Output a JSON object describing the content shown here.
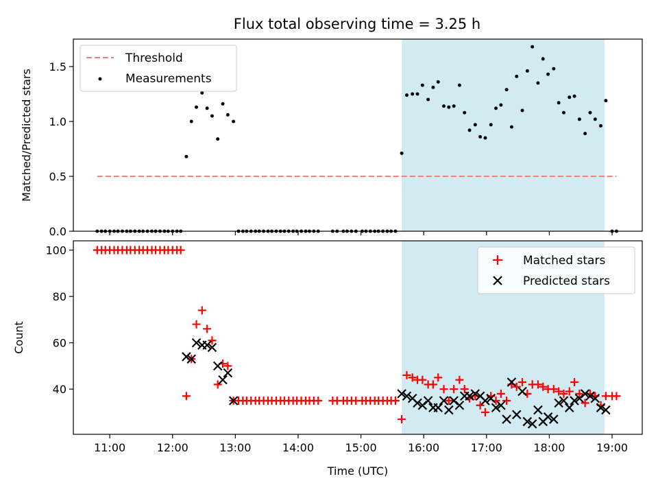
{
  "title": "Flux total observing time = 3.25 h",
  "colors": {
    "threshold": "#f08080",
    "measurement": "#000000",
    "matched": "#ff0000",
    "predicted": "#000000",
    "span": "#add8e6"
  },
  "chart_data": [
    {
      "type": "scatter",
      "title": "Flux total observing time = 3.25 h",
      "xlabel": "",
      "ylabel": "Matched/Predicted stars",
      "xlim": [
        10.42,
        19.48
      ],
      "ylim": [
        0,
        1.75
      ],
      "yticks": [
        0.0,
        0.5,
        1.0,
        1.5
      ],
      "ytick_labels": [
        "0.0",
        "0.5",
        "1.0",
        "1.5"
      ],
      "xticks": [
        11,
        12,
        13,
        14,
        15,
        16,
        17,
        18,
        19
      ],
      "xtick_labels": [],
      "legend": {
        "position": "top-left",
        "entries": [
          "Threshold",
          "Measurements"
        ]
      },
      "shaded_span": [
        15.65,
        18.88
      ],
      "threshold": {
        "name": "Threshold",
        "x": [
          10.8,
          19.07
        ],
        "y": 0.5,
        "style": "dashed"
      },
      "measurements": {
        "name": "Measurements",
        "points": [
          [
            10.8,
            0
          ],
          [
            10.87,
            0
          ],
          [
            10.93,
            0
          ],
          [
            11.0,
            0
          ],
          [
            11.07,
            0
          ],
          [
            11.13,
            0
          ],
          [
            11.2,
            0
          ],
          [
            11.27,
            0
          ],
          [
            11.33,
            0
          ],
          [
            11.4,
            0
          ],
          [
            11.47,
            0
          ],
          [
            11.53,
            0
          ],
          [
            11.6,
            0
          ],
          [
            11.67,
            0
          ],
          [
            11.73,
            0
          ],
          [
            11.8,
            0
          ],
          [
            11.87,
            0
          ],
          [
            11.93,
            0
          ],
          [
            12.0,
            0
          ],
          [
            12.07,
            0
          ],
          [
            12.13,
            0
          ],
          [
            12.22,
            0.68
          ],
          [
            12.3,
            1.0
          ],
          [
            12.38,
            1.13
          ],
          [
            12.47,
            1.26
          ],
          [
            12.55,
            1.12
          ],
          [
            12.63,
            1.05
          ],
          [
            12.72,
            0.84
          ],
          [
            12.8,
            1.16
          ],
          [
            12.88,
            1.06
          ],
          [
            12.97,
            1.0
          ],
          [
            13.05,
            0
          ],
          [
            13.12,
            0
          ],
          [
            13.18,
            0
          ],
          [
            13.25,
            0
          ],
          [
            13.32,
            0
          ],
          [
            13.38,
            0
          ],
          [
            13.45,
            0
          ],
          [
            13.52,
            0
          ],
          [
            13.58,
            0
          ],
          [
            13.65,
            0
          ],
          [
            13.72,
            0
          ],
          [
            13.78,
            0
          ],
          [
            13.85,
            0
          ],
          [
            13.92,
            0
          ],
          [
            13.98,
            0
          ],
          [
            14.05,
            0
          ],
          [
            14.12,
            0
          ],
          [
            14.18,
            0
          ],
          [
            14.25,
            0
          ],
          [
            14.32,
            0
          ],
          [
            14.55,
            0
          ],
          [
            14.62,
            0
          ],
          [
            14.72,
            0
          ],
          [
            14.78,
            0
          ],
          [
            14.85,
            0
          ],
          [
            14.92,
            0
          ],
          [
            15.02,
            0
          ],
          [
            15.08,
            0
          ],
          [
            15.15,
            0
          ],
          [
            15.22,
            0
          ],
          [
            15.28,
            0
          ],
          [
            15.35,
            0
          ],
          [
            15.42,
            0
          ],
          [
            15.48,
            0
          ],
          [
            15.55,
            0
          ],
          [
            15.65,
            0.71
          ],
          [
            15.73,
            1.24
          ],
          [
            15.82,
            1.25
          ],
          [
            15.9,
            1.25
          ],
          [
            15.98,
            1.33
          ],
          [
            16.07,
            1.2
          ],
          [
            16.15,
            1.31
          ],
          [
            16.23,
            1.36
          ],
          [
            16.32,
            1.14
          ],
          [
            16.4,
            1.13
          ],
          [
            16.48,
            1.14
          ],
          [
            16.57,
            1.33
          ],
          [
            16.65,
            1.08
          ],
          [
            16.73,
            0.92
          ],
          [
            16.82,
            0.97
          ],
          [
            16.9,
            0.86
          ],
          [
            16.98,
            0.85
          ],
          [
            17.07,
            0.97
          ],
          [
            17.15,
            1.12
          ],
          [
            17.23,
            1.15
          ],
          [
            17.32,
            1.29
          ],
          [
            17.4,
            0.95
          ],
          [
            17.48,
            1.41
          ],
          [
            17.57,
            1.1
          ],
          [
            17.65,
            1.46
          ],
          [
            17.73,
            1.68
          ],
          [
            17.82,
            1.35
          ],
          [
            17.9,
            1.57
          ],
          [
            17.98,
            1.43
          ],
          [
            18.07,
            1.48
          ],
          [
            18.15,
            1.17
          ],
          [
            18.23,
            1.08
          ],
          [
            18.32,
            1.22
          ],
          [
            18.4,
            1.23
          ],
          [
            18.48,
            1.02
          ],
          [
            18.57,
            0.89
          ],
          [
            18.65,
            1.08
          ],
          [
            18.73,
            1.02
          ],
          [
            18.82,
            0.96
          ],
          [
            18.9,
            1.19
          ],
          [
            19.0,
            0
          ],
          [
            19.07,
            0
          ]
        ]
      }
    },
    {
      "type": "scatter",
      "title": "",
      "xlabel": "Time (UTC)",
      "ylabel": "Count",
      "xlim": [
        10.42,
        19.48
      ],
      "ylim": [
        20.5,
        104
      ],
      "yticks": [
        40,
        60,
        80,
        100
      ],
      "ytick_labels": [
        "40",
        "60",
        "80",
        "100"
      ],
      "xticks": [
        11,
        12,
        13,
        14,
        15,
        16,
        17,
        18,
        19
      ],
      "xtick_labels": [
        "11:00",
        "12:00",
        "13:00",
        "14:00",
        "15:00",
        "16:00",
        "17:00",
        "18:00",
        "19:00"
      ],
      "legend": {
        "position": "top-right",
        "entries": [
          "Matched stars",
          "Predicted stars"
        ]
      },
      "shaded_span": [
        15.65,
        18.88
      ],
      "series": [
        {
          "name": "Matched stars",
          "marker": "+",
          "points": [
            [
              10.8,
              100
            ],
            [
              10.87,
              100
            ],
            [
              10.93,
              100
            ],
            [
              11.0,
              100
            ],
            [
              11.07,
              100
            ],
            [
              11.13,
              100
            ],
            [
              11.2,
              100
            ],
            [
              11.27,
              100
            ],
            [
              11.33,
              100
            ],
            [
              11.4,
              100
            ],
            [
              11.47,
              100
            ],
            [
              11.53,
              100
            ],
            [
              11.6,
              100
            ],
            [
              11.67,
              100
            ],
            [
              11.73,
              100
            ],
            [
              11.8,
              100
            ],
            [
              11.87,
              100
            ],
            [
              11.93,
              100
            ],
            [
              12.0,
              100
            ],
            [
              12.07,
              100
            ],
            [
              12.13,
              100
            ],
            [
              12.22,
              37
            ],
            [
              12.3,
              53
            ],
            [
              12.38,
              68
            ],
            [
              12.47,
              74
            ],
            [
              12.55,
              66
            ],
            [
              12.63,
              61
            ],
            [
              12.72,
              42
            ],
            [
              12.8,
              51
            ],
            [
              12.88,
              50
            ],
            [
              12.97,
              35
            ],
            [
              13.05,
              35
            ],
            [
              13.12,
              35
            ],
            [
              13.18,
              35
            ],
            [
              13.25,
              35
            ],
            [
              13.32,
              35
            ],
            [
              13.38,
              35
            ],
            [
              13.45,
              35
            ],
            [
              13.52,
              35
            ],
            [
              13.58,
              35
            ],
            [
              13.65,
              35
            ],
            [
              13.72,
              35
            ],
            [
              13.78,
              35
            ],
            [
              13.85,
              35
            ],
            [
              13.92,
              35
            ],
            [
              13.98,
              35
            ],
            [
              14.05,
              35
            ],
            [
              14.12,
              35
            ],
            [
              14.18,
              35
            ],
            [
              14.25,
              35
            ],
            [
              14.32,
              35
            ],
            [
              14.55,
              35
            ],
            [
              14.62,
              35
            ],
            [
              14.72,
              35
            ],
            [
              14.78,
              35
            ],
            [
              14.85,
              35
            ],
            [
              14.92,
              35
            ],
            [
              15.02,
              35
            ],
            [
              15.08,
              35
            ],
            [
              15.15,
              35
            ],
            [
              15.22,
              35
            ],
            [
              15.28,
              35
            ],
            [
              15.35,
              35
            ],
            [
              15.42,
              35
            ],
            [
              15.48,
              35
            ],
            [
              15.55,
              35
            ],
            [
              15.65,
              27
            ],
            [
              15.73,
              46
            ],
            [
              15.82,
              45
            ],
            [
              15.9,
              44
            ],
            [
              15.98,
              44
            ],
            [
              16.07,
              42
            ],
            [
              16.15,
              42
            ],
            [
              16.23,
              45
            ],
            [
              16.32,
              40
            ],
            [
              16.4,
              35
            ],
            [
              16.48,
              40
            ],
            [
              16.57,
              44
            ],
            [
              16.65,
              40
            ],
            [
              16.73,
              36
            ],
            [
              16.82,
              37
            ],
            [
              16.9,
              33
            ],
            [
              16.98,
              30
            ],
            [
              17.07,
              37
            ],
            [
              17.15,
              35
            ],
            [
              17.23,
              38
            ],
            [
              17.32,
              35
            ],
            [
              17.4,
              42
            ],
            [
              17.48,
              41
            ],
            [
              17.57,
              43
            ],
            [
              17.65,
              38
            ],
            [
              17.73,
              42
            ],
            [
              17.82,
              42
            ],
            [
              17.9,
              41
            ],
            [
              17.98,
              40
            ],
            [
              18.07,
              40
            ],
            [
              18.15,
              39
            ],
            [
              18.23,
              38
            ],
            [
              18.32,
              39
            ],
            [
              18.4,
              43
            ],
            [
              18.48,
              38
            ],
            [
              18.57,
              34
            ],
            [
              18.65,
              38
            ],
            [
              18.73,
              37
            ],
            [
              18.82,
              33
            ],
            [
              18.9,
              37
            ],
            [
              19.0,
              37
            ],
            [
              19.07,
              37
            ]
          ]
        },
        {
          "name": "Predicted stars",
          "marker": "x",
          "points": [
            [
              12.22,
              54
            ],
            [
              12.3,
              53
            ],
            [
              12.38,
              60
            ],
            [
              12.47,
              59
            ],
            [
              12.55,
              59
            ],
            [
              12.63,
              58
            ],
            [
              12.72,
              50
            ],
            [
              12.8,
              44
            ],
            [
              12.88,
              47
            ],
            [
              12.97,
              35
            ],
            [
              15.65,
              38
            ],
            [
              15.73,
              37
            ],
            [
              15.82,
              36
            ],
            [
              15.9,
              34
            ],
            [
              15.98,
              33
            ],
            [
              16.07,
              35
            ],
            [
              16.15,
              32
            ],
            [
              16.23,
              32
            ],
            [
              16.32,
              35
            ],
            [
              16.4,
              31
            ],
            [
              16.48,
              35
            ],
            [
              16.57,
              33
            ],
            [
              16.65,
              37
            ],
            [
              16.73,
              37
            ],
            [
              16.82,
              38
            ],
            [
              16.9,
              37
            ],
            [
              16.98,
              35
            ],
            [
              17.07,
              36
            ],
            [
              17.15,
              32
            ],
            [
              17.23,
              33
            ],
            [
              17.32,
              27
            ],
            [
              17.4,
              43
            ],
            [
              17.48,
              29
            ],
            [
              17.57,
              39
            ],
            [
              17.65,
              26
            ],
            [
              17.73,
              25
            ],
            [
              17.82,
              31
            ],
            [
              17.9,
              26
            ],
            [
              17.98,
              28
            ],
            [
              18.07,
              27
            ],
            [
              18.15,
              34
            ],
            [
              18.23,
              35
            ],
            [
              18.32,
              32
            ],
            [
              18.4,
              35
            ],
            [
              18.48,
              36
            ],
            [
              18.57,
              38
            ],
            [
              18.65,
              37
            ],
            [
              18.73,
              36
            ],
            [
              18.82,
              32
            ],
            [
              18.9,
              31
            ]
          ]
        }
      ]
    }
  ]
}
